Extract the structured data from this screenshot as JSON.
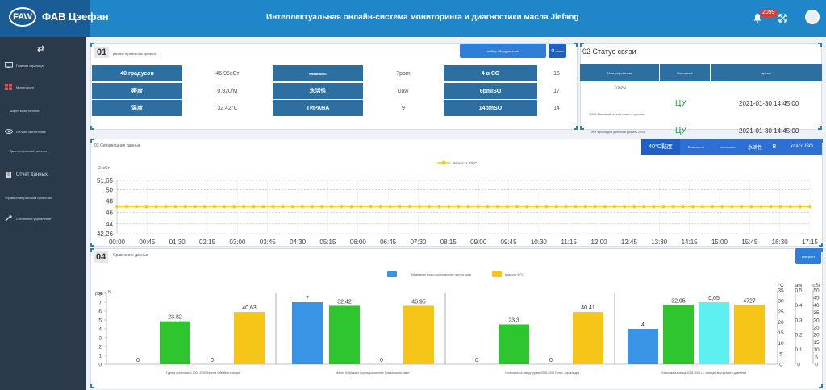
{
  "header": {
    "logo_mark": "FAW",
    "logo_text": "ФАВ Цзефан",
    "system_title": "Интеллектуальная онлайн-система мониторинга и диагностики масла Jiefang",
    "notification_count": "2099"
  },
  "sidebar": {
    "items": [
      {
        "label": "Главная страница",
        "icon": "monitor-icon"
      },
      {
        "label": "Мониторинг",
        "icon": "grid-icon"
      },
      {
        "label": "Карта мониторинга",
        "icon": "map-icon"
      },
      {
        "label": "Онлайн мониторинг",
        "icon": "eye-icon"
      },
      {
        "label": "Диагностический анализ",
        "icon": "chart-icon"
      },
      {
        "label": "Отчет данных",
        "icon": "document-icon"
      },
      {
        "label": "Управление рабочим проектом",
        "icon": "folder-icon"
      },
      {
        "label": "Системное управление",
        "icon": "wrench-icon"
      }
    ]
  },
  "panel01": {
    "number": "01",
    "subtitle": "данные в реальном времени",
    "select_label": "выбор оборудования",
    "query_label": "поиск",
    "rows": [
      [
        "40 градусов",
        "46.95cСт",
        "влажность",
        "7ppm",
        "4 в СО",
        "16"
      ],
      [
        "密度",
        "0,920/M",
        "水活性",
        "0aw",
        "6pmISO",
        "17"
      ],
      [
        "温度",
        "32.42°C",
        "ТИРАНА",
        "9",
        "14pmSO",
        "14"
      ]
    ]
  },
  "panel02": {
    "title": "02 Статус связи",
    "headers": [
      "Имя устройства",
      "Состояние",
      "время"
    ],
    "rows": [
      {
        "name": "ОТКРЫ",
        "status": "",
        "time": ""
      },
      {
        "name": "2001 Масляный анализ нижнего прессов",
        "status": "ЦУ",
        "time": "2021-01-30 14:45:00"
      },
      {
        "name": "Тест Фронта для данного в уровень 2004",
        "status": "ЦУ",
        "time": "2021-01-30 14:45:00"
      }
    ]
  },
  "panel03": {
    "title": "03 Сегодняшние данные",
    "tabs": [
      "40°C黏度",
      "Влажность",
      "плотность",
      "水活性",
      "B",
      "класс ISO"
    ],
    "legend": "вязкость 40°C",
    "unit_label": "2: cСт"
  },
  "panel04": {
    "number": "04",
    "title": "Сравнение данных",
    "button_label": "контраст",
    "legend_blue": "Изменение воды сопоставление частиц воды",
    "legend_yellow": "вязкость 40°C",
    "left_axis_labels": [
      "ppm",
      "N"
    ],
    "right_axis_labels": [
      "°C",
      "aw",
      "cSt"
    ],
    "group_captions": [
      "Группа установка 2-2004 2000 Фронта тайбэйки станции",
      "Масло Лубрикант группа-разъемное Трансмиссия пакет",
      "Установка на завод группа 2018-2000 Пресс - прокладка",
      "Установка на завод 2018-2000 г.с. станция внутреннего давления"
    ]
  },
  "chart_data": [
    {
      "type": "line",
      "title": "03 Сегодняшние данные",
      "ylabel": "2: cСт",
      "ylim": [
        42.26,
        51.65
      ],
      "yticks": [
        42.26,
        44,
        46,
        48,
        50,
        51.65
      ],
      "x": [
        "00:00",
        "00:45",
        "01:30",
        "02:15",
        "03:00",
        "03:45",
        "04:30",
        "05:15",
        "06:00",
        "06:45",
        "07:30",
        "08:15",
        "09:00",
        "09:45",
        "10:30",
        "11:15",
        "12:00",
        "12:45",
        "13:30",
        "14:15",
        "15:00",
        "15:45",
        "16:30",
        "17:15"
      ],
      "series": [
        {
          "name": "вязкость 40°C",
          "constant_value": 47,
          "num_points": 72
        }
      ]
    },
    {
      "type": "bar",
      "title": "Сравнение данных",
      "series": [
        {
          "name": "Изменение воды сопоставление частиц воды",
          "color": "#3a94e6"
        },
        {
          "name": "вязкость 40°C",
          "color": "#f5c518"
        }
      ],
      "groups": [
        {
          "caption": "Группа установка 2-2004 2000 Фронта тайбэйки станции",
          "bars": [
            {
              "label": "0",
              "value": 0,
              "color": "#3a94e6"
            },
            {
              "label": "23.82",
              "value": 4.85,
              "color": "#2ec52e"
            },
            {
              "label": "0",
              "value": 0,
              "color": "#3a94e6"
            },
            {
              "label": "40,63",
              "value": 5.9,
              "color": "#f5c518"
            }
          ]
        },
        {
          "caption": "Масло Лубрикант группа-разъемное Трансмиссия пакет",
          "bars": [
            {
              "label": "7",
              "value": 7,
              "color": "#3a94e6"
            },
            {
              "label": "32,42",
              "value": 6.6,
              "color": "#2ec52e"
            },
            {
              "label": "0",
              "value": 0,
              "color": "#3a94e6"
            },
            {
              "label": "46,95",
              "value": 6.6,
              "color": "#f5c518"
            }
          ]
        },
        {
          "caption": "Установка на завод группа 2018-2000 Пресс - прокладка",
          "bars": [
            {
              "label": "0",
              "value": 0,
              "color": "#3a94e6"
            },
            {
              "label": "23,3",
              "value": 4.5,
              "color": "#2ec52e"
            },
            {
              "label": "0",
              "value": 0,
              "color": "#3a94e6"
            },
            {
              "label": "40.41",
              "value": 5.9,
              "color": "#f5c518"
            }
          ]
        },
        {
          "caption": "Установка на завод 2018-2000 г.с. станция внутреннего давления",
          "bars": [
            {
              "label": "4",
              "value": 4,
              "color": "#3a94e6"
            },
            {
              "label": "32,95",
              "value": 6.7,
              "color": "#2ec52e"
            },
            {
              "label": "0,05",
              "value": 7,
              "color": "#5ef0f0"
            },
            {
              "label": "4727",
              "value": 6.7,
              "color": "#f5c518"
            }
          ]
        }
      ],
      "left_axis": {
        "labels": [
          "ppm",
          "N"
        ],
        "ticks": [
          0,
          1,
          2,
          3,
          4,
          5,
          6,
          7,
          8
        ],
        "ylim": [
          0,
          8
        ]
      },
      "right_axes": [
        {
          "label": "°C",
          "ticks": [
            0,
            5,
            10,
            15,
            20,
            25,
            30,
            35
          ]
        },
        {
          "label": "aw",
          "ticks": [
            0,
            0.1,
            0.2,
            0.3,
            0.4,
            0.5
          ]
        },
        {
          "label": "cSt",
          "ticks": [
            0,
            5,
            10,
            15,
            20,
            25,
            30,
            35,
            40,
            45,
            50
          ]
        }
      ]
    }
  ]
}
